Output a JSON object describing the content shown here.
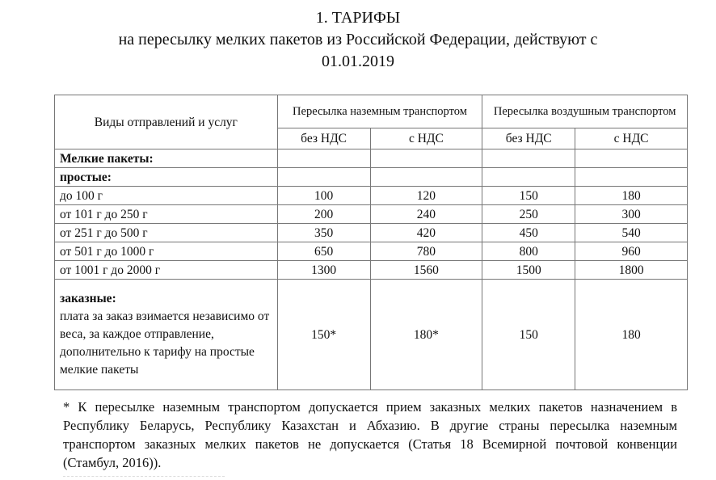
{
  "title": {
    "line1": "1. ТАРИФЫ",
    "line2": "на пересылку мелких пакетов из Российской Федерации, действуют с",
    "line3": "01.01.2019"
  },
  "table": {
    "col_services": "Виды отправлений и услуг",
    "group_ground": "Пересылка наземным транспортом",
    "group_air": "Пересылка воздушным транспортом",
    "sub": [
      "без НДС",
      "с НДС",
      "без НДС",
      "с НДС"
    ],
    "section": "Мелкие пакеты:",
    "simple": "простые:",
    "rows": [
      {
        "label": "до 100 г",
        "v": [
          "100",
          "120",
          "150",
          "180"
        ]
      },
      {
        "label": "от 101 г до 250 г",
        "v": [
          "200",
          "240",
          "250",
          "300"
        ]
      },
      {
        "label": "от 251 г до 500 г",
        "v": [
          "350",
          "420",
          "450",
          "540"
        ]
      },
      {
        "label": "от 501 г до 1000 г",
        "v": [
          "650",
          "780",
          "800",
          "960"
        ]
      },
      {
        "label": "от 1001 г до 2000 г",
        "v": [
          "1300",
          "1560",
          "1500",
          "1800"
        ]
      }
    ],
    "registered": {
      "heading": "заказные:",
      "text": "плата за заказ взимается независимо от веса, за каждое отправление, дополнительно к тарифу на простые мелкие пакеты",
      "v": [
        "150*",
        "180*",
        "150",
        "180"
      ]
    }
  },
  "footnote": "* К пересылке наземным транспортом допускается прием заказных мелких пакетов назначением в Республику Беларусь, Республику Казахстан и Абхазию. В другие страны пересылка наземным транспортом заказных мелких пакетов не допускается (Статья 18 Всемирной почтовой конвенции (Стамбул, 2016))."
}
